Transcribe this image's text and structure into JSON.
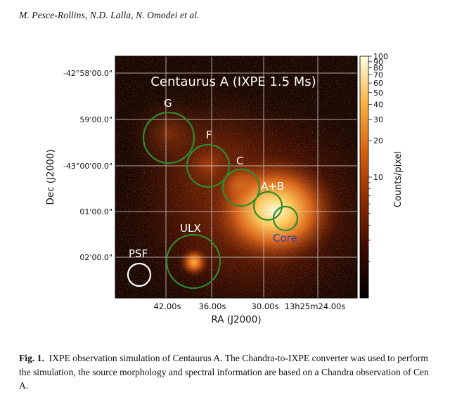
{
  "header": {
    "authors": "M. Pesce-Rollins, N.D. Lalla, N. Omodei et al."
  },
  "figure": {
    "title": "Centaurus A (IXPE 1.5 Ms)",
    "xlabel": "RA (J2000)",
    "ylabel": "Dec (J2000)",
    "x_ticks": [
      "42.00s",
      "36.00s",
      "30.00s",
      "13h25m24.00s"
    ],
    "y_ticks": [
      "-42°58'00.0\"",
      "59'00.0\"",
      "-43°00'00.0\"",
      "01'00.0\"",
      "02'00.0\""
    ],
    "regions": [
      {
        "label": "G",
        "color": "#ffffff"
      },
      {
        "label": "F",
        "color": "#ffffff"
      },
      {
        "label": "C",
        "color": "#ffffff"
      },
      {
        "label": "A+B",
        "color": "#ffffff"
      },
      {
        "label": "Core",
        "color": "#3a3aa8"
      },
      {
        "label": "ULX",
        "color": "#ffffff"
      },
      {
        "label": "PSF",
        "color": "#ffffff"
      }
    ],
    "circle_color": "#2e8b2e",
    "psf_circle_color": "#ffffff",
    "colorbar": {
      "label": "Counts/pixel",
      "labeled_ticks": [
        "100",
        "90",
        "80",
        "70",
        "60",
        "50",
        "40",
        "30",
        "20",
        "10"
      ],
      "min": 1,
      "max": 100,
      "scale": "log"
    }
  },
  "caption": {
    "label": "Fig. 1.",
    "text": "IXPE observation simulation of Centaurus A. The Chandra-to-IXPE converter was used to perform the simulation, the source morphology and spectral information are based on a Chandra observation of Cen A."
  }
}
